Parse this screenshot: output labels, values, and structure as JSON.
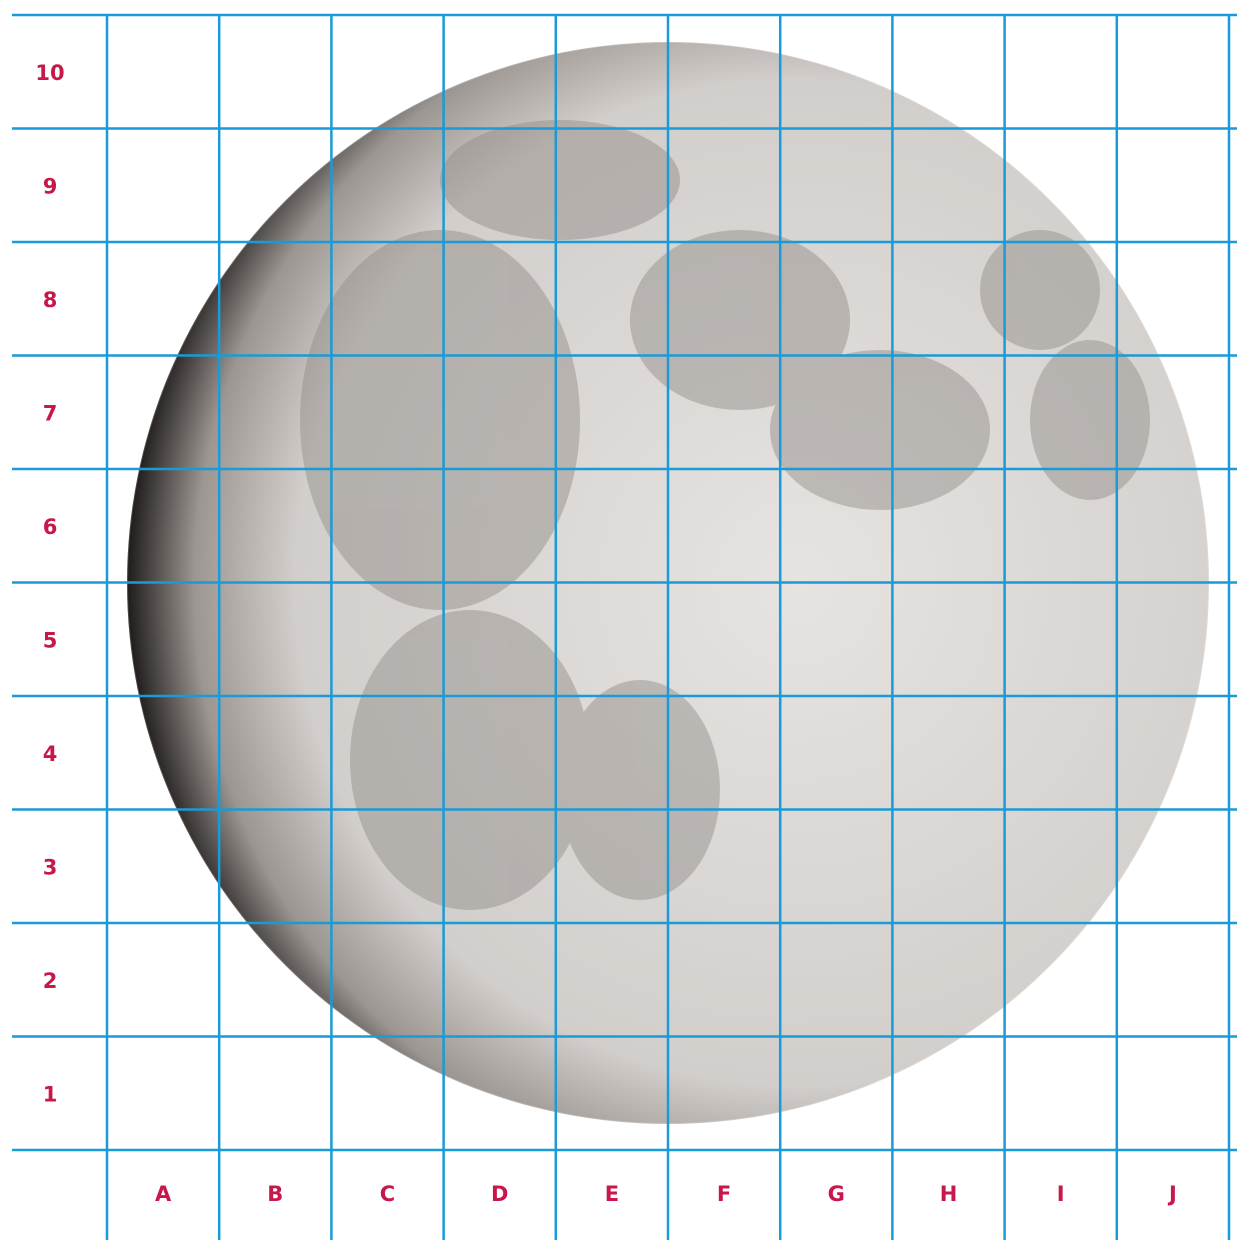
{
  "grid": {
    "rows": [
      "10",
      "9",
      "8",
      "7",
      "6",
      "5",
      "4",
      "3",
      "2",
      "1"
    ],
    "columns": [
      "A",
      "B",
      "C",
      "D",
      "E",
      "F",
      "G",
      "H",
      "I",
      "J"
    ]
  }
}
